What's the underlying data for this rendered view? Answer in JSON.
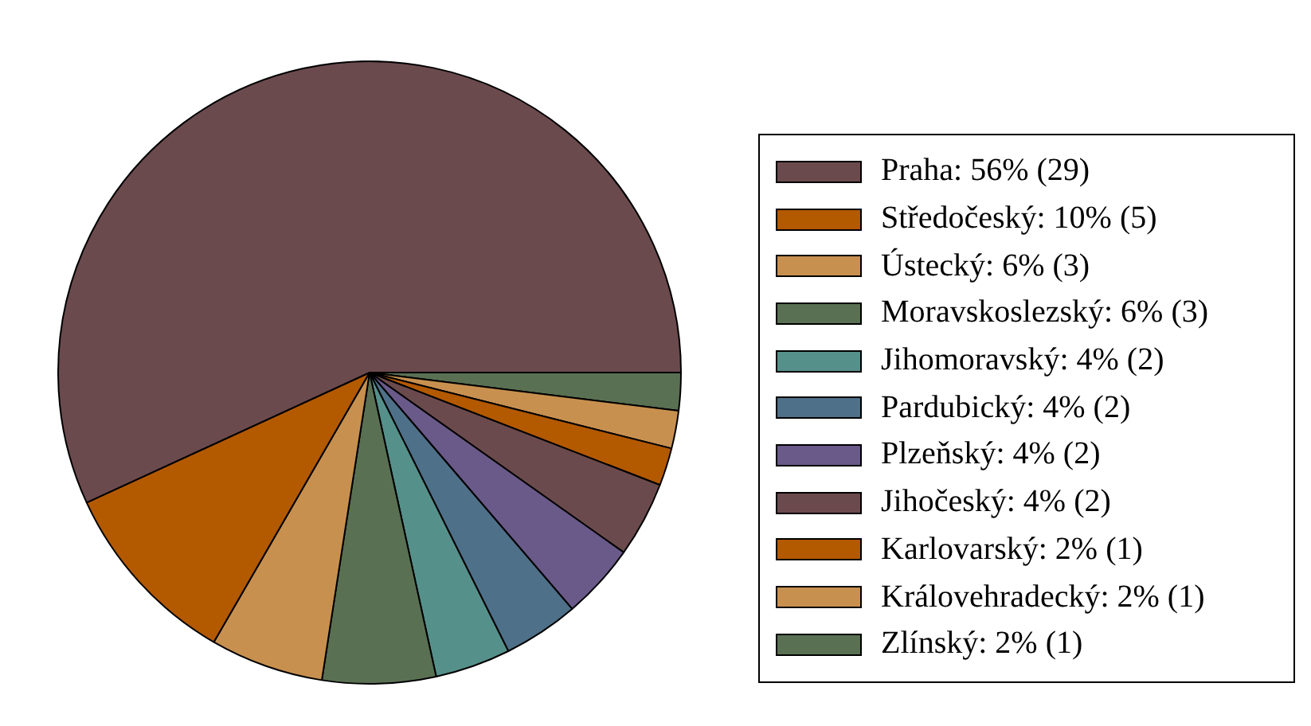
{
  "chart_data": {
    "type": "pie",
    "categories": [
      "Praha: 56% (29)",
      "Středočeský: 10% (5)",
      "Ústecký: 6% (3)",
      "Moravskoslezský: 6% (3)",
      "Jihomoravský: 4% (2)",
      "Pardubický: 4% (2)",
      "Plzeňský: 4% (2)",
      "Jihočeský: 4% (2)",
      "Karlovarský: 2% (1)",
      "Královehradecký: 2% (1)",
      "Zlínský: 2% (1)"
    ],
    "values": [
      29,
      5,
      3,
      3,
      2,
      2,
      2,
      2,
      1,
      1,
      1
    ],
    "colors": [
      "#6b4a4e",
      "#b35900",
      "#c8904f",
      "#5a7053",
      "#56908a",
      "#4e7088",
      "#6a5a8a",
      "#6b4a4e",
      "#b35900",
      "#c8904f",
      "#5a7053"
    ],
    "legend": "right"
  }
}
